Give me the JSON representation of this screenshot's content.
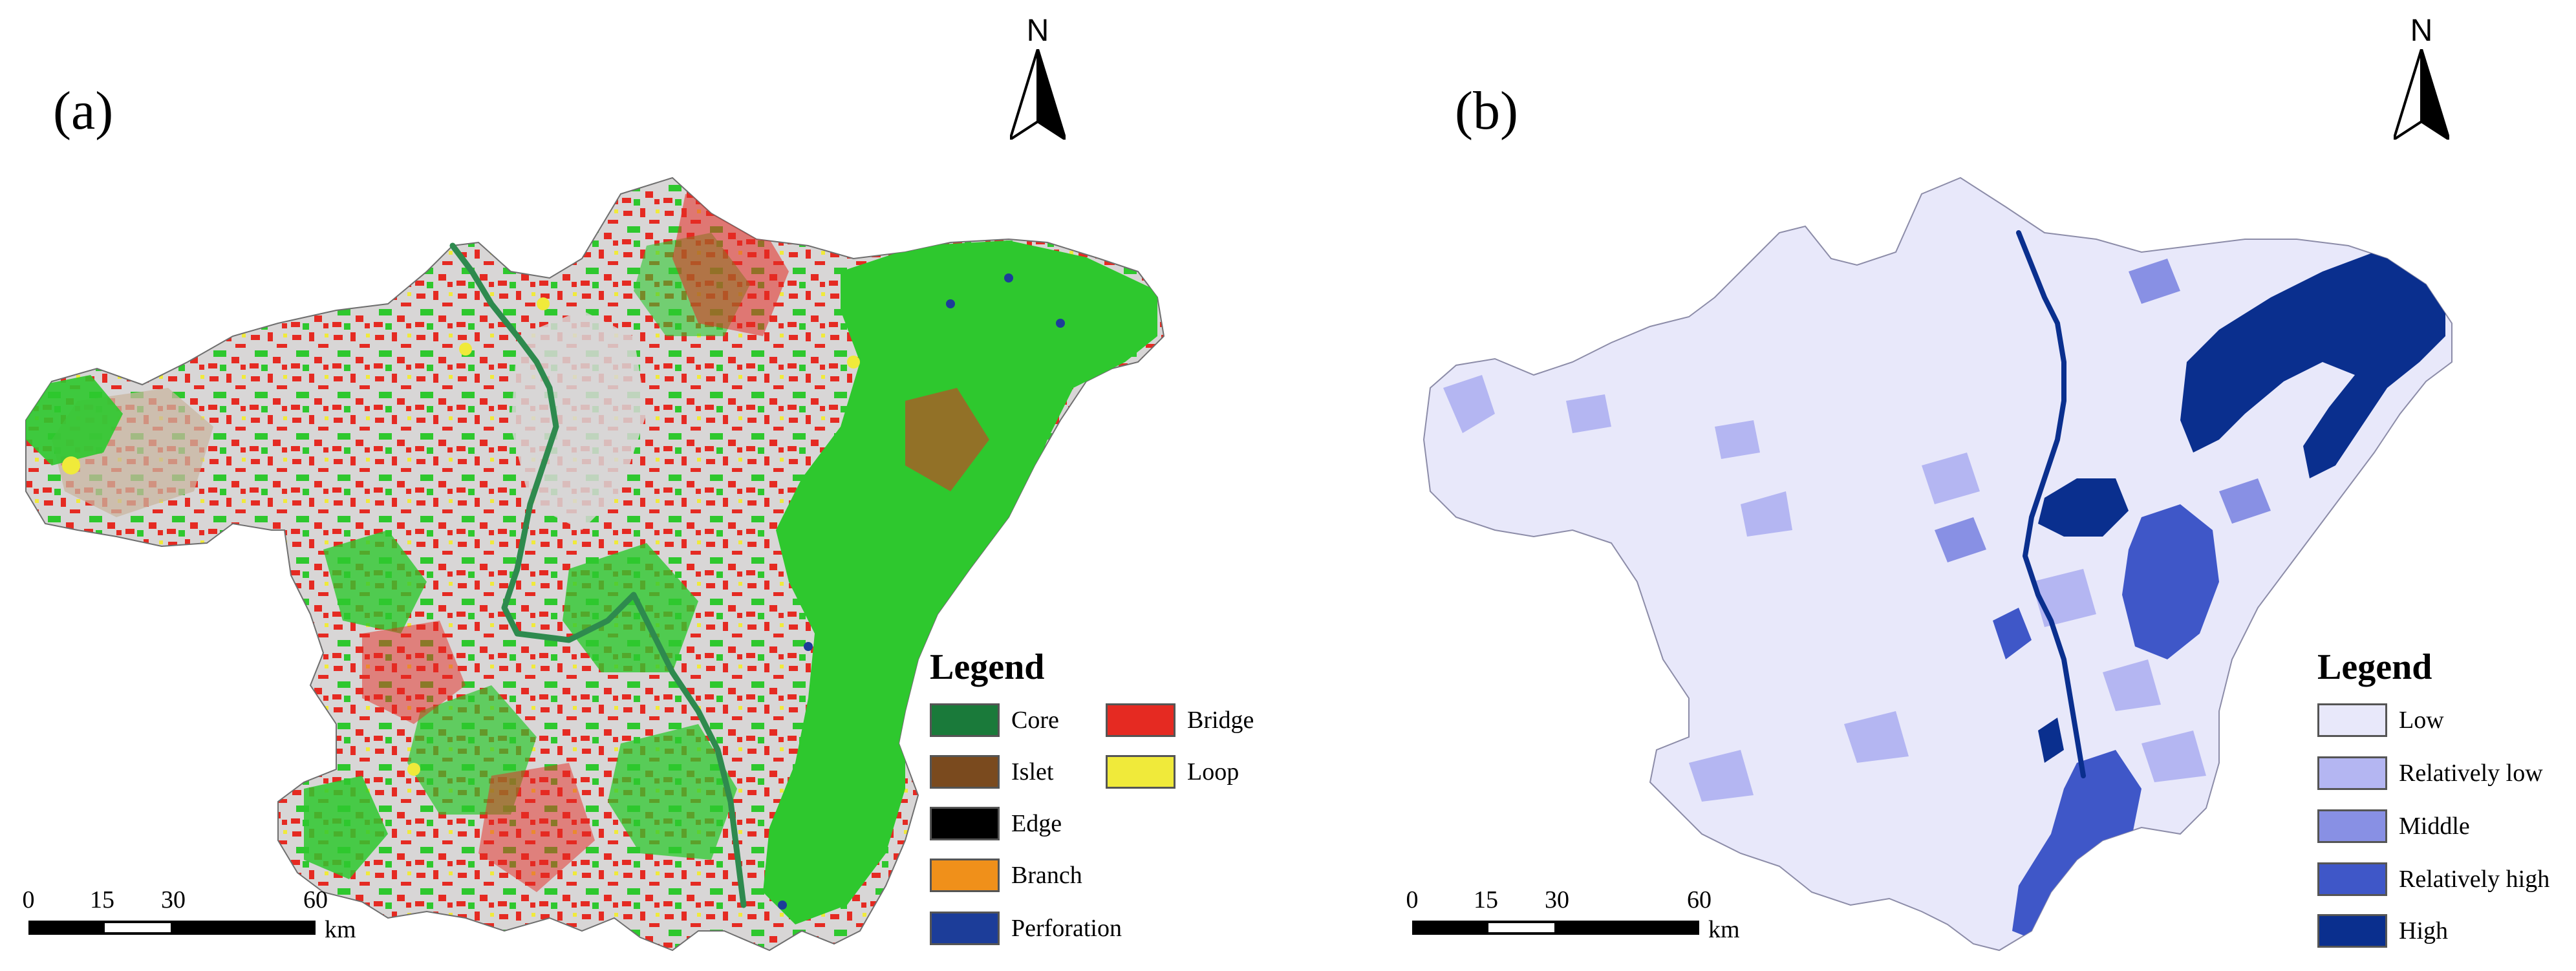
{
  "panels": [
    {
      "label": "(a)",
      "north": "N",
      "legend_title": "Legend",
      "legend": [
        {
          "label": "Core",
          "color": "#1a7a3a"
        },
        {
          "label": "Islet",
          "color": "#7a4a1e"
        },
        {
          "label": "Edge",
          "color": "#000000"
        },
        {
          "label": "Branch",
          "color": "#f0901a"
        },
        {
          "label": "Perforation",
          "color": "#1c3d99"
        },
        {
          "label": "Bridge",
          "color": "#e52a22"
        },
        {
          "label": "Loop",
          "color": "#f0ea3a"
        }
      ],
      "scale": {
        "ticks": [
          "0",
          "15",
          "30",
          "60"
        ],
        "unit": "km"
      }
    },
    {
      "label": "(b)",
      "north": "N",
      "legend_title": "Legend",
      "legend": [
        {
          "label": "Low",
          "color": "#e8e8fa"
        },
        {
          "label": "Relatively low",
          "color": "#b4b6f2"
        },
        {
          "label": "Middle",
          "color": "#8890e4"
        },
        {
          "label": "Relatively high",
          "color": "#3f57c8"
        },
        {
          "label": "High",
          "color": "#0a2f8e"
        }
      ],
      "scale": {
        "ticks": [
          "0",
          "15",
          "30",
          "60"
        ],
        "unit": "km"
      }
    }
  ],
  "colors": {
    "background_a": "#d8d6d6",
    "green_a": "#2ec82e",
    "river_a": "#2e8a4e"
  },
  "icons": [
    "north-arrow-icon"
  ]
}
